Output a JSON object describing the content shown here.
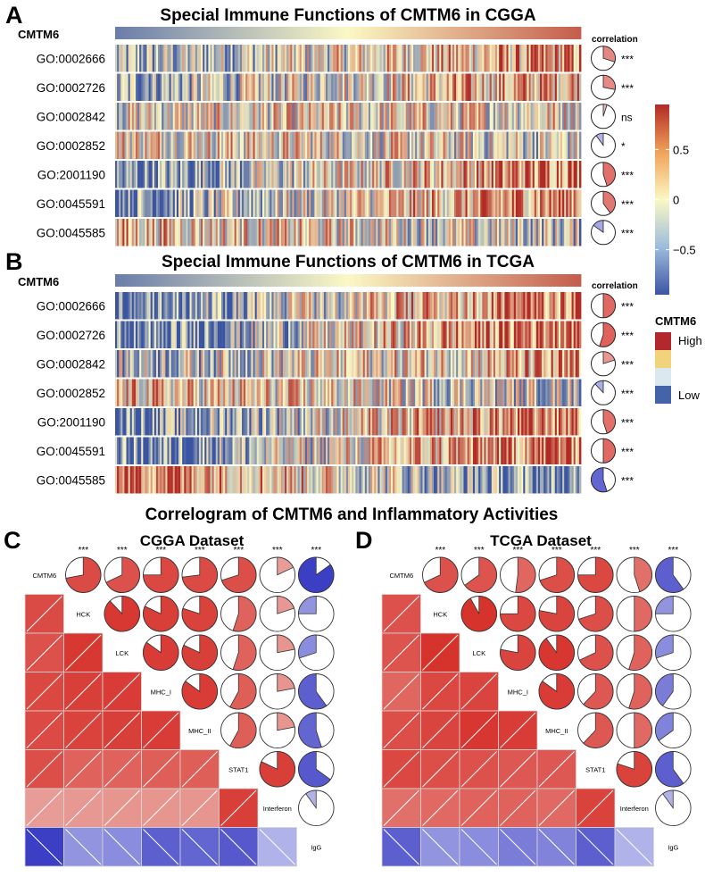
{
  "figure": {
    "panels": {
      "A": {
        "letter": "A",
        "title": "Special Immune Functions of CMTM6 in CGGA",
        "sort_label": "CMTM6",
        "corr_header": "correlation",
        "rows": [
          {
            "go": "GO:0002666",
            "corr": 0.3,
            "sig": "***"
          },
          {
            "go": "GO:0002726",
            "corr": 0.28,
            "sig": "***"
          },
          {
            "go": "GO:0002842",
            "corr": 0.05,
            "sig": "ns"
          },
          {
            "go": "GO:0002852",
            "corr": -0.1,
            "sig": "*"
          },
          {
            "go": "GO:2001190",
            "corr": 0.45,
            "sig": "***"
          },
          {
            "go": "GO:0045591",
            "corr": 0.4,
            "sig": "***"
          },
          {
            "go": "GO:0045585",
            "corr": -0.15,
            "sig": "***"
          }
        ]
      },
      "B": {
        "letter": "B",
        "title": "Special Immune Functions of CMTM6 in TCGA",
        "sort_label": "CMTM6",
        "corr_header": "correlation",
        "rows": [
          {
            "go": "GO:0002666",
            "corr": 0.5,
            "sig": "***"
          },
          {
            "go": "GO:0002726",
            "corr": 0.55,
            "sig": "***"
          },
          {
            "go": "GO:0002842",
            "corr": 0.2,
            "sig": "***"
          },
          {
            "go": "GO:0002852",
            "corr": -0.12,
            "sig": "***"
          },
          {
            "go": "GO:2001190",
            "corr": 0.45,
            "sig": "***"
          },
          {
            "go": "GO:0045591",
            "corr": 0.5,
            "sig": "***"
          },
          {
            "go": "GO:0045585",
            "corr": -0.55,
            "sig": "***"
          }
        ]
      },
      "C": {
        "letter": "C",
        "title": "CGGA Dataset",
        "variables": [
          "CMTM6",
          "HCK",
          "LCK",
          "MHC_I",
          "MHC_II",
          "STAT1",
          "Interferon",
          "IgG"
        ],
        "significance": [
          "***",
          "***",
          "***",
          "***",
          "***",
          "***",
          "***"
        ],
        "matrix": [
          [
            1,
            0.72,
            0.68,
            0.75,
            0.73,
            0.7,
            0.18,
            -0.85
          ],
          [
            0.72,
            1,
            0.88,
            0.82,
            0.8,
            0.55,
            0.2,
            -0.25
          ],
          [
            0.68,
            0.88,
            1,
            0.85,
            0.82,
            0.55,
            0.22,
            -0.3
          ],
          [
            0.75,
            0.82,
            0.85,
            1,
            0.85,
            0.58,
            0.22,
            -0.6
          ],
          [
            0.73,
            0.8,
            0.82,
            0.85,
            1,
            0.58,
            0.22,
            -0.55
          ],
          [
            0.7,
            0.55,
            0.55,
            0.58,
            0.58,
            1,
            0.82,
            -0.65
          ],
          [
            0.18,
            0.2,
            0.22,
            0.22,
            0.22,
            0.82,
            1,
            -0.1
          ],
          [
            -0.85,
            -0.25,
            -0.3,
            -0.6,
            -0.55,
            -0.65,
            -0.1,
            1
          ]
        ]
      },
      "D": {
        "letter": "D",
        "title": "TCGA Dataset",
        "variables": [
          "CMTM6",
          "HCK",
          "LCK",
          "MHC_I",
          "MHC_II",
          "STAT1",
          "Interferon",
          "IgG"
        ],
        "significance": [
          "***",
          "***",
          "***",
          "***",
          "***",
          "***",
          "***"
        ],
        "matrix": [
          [
            1,
            0.68,
            0.65,
            0.52,
            0.7,
            0.75,
            0.45,
            -0.6
          ],
          [
            0.68,
            1,
            0.92,
            0.75,
            0.78,
            0.7,
            0.5,
            -0.25
          ],
          [
            0.65,
            0.92,
            1,
            0.78,
            0.9,
            0.68,
            0.55,
            -0.3
          ],
          [
            0.52,
            0.75,
            0.78,
            1,
            0.85,
            0.62,
            0.55,
            -0.4
          ],
          [
            0.7,
            0.78,
            0.9,
            0.85,
            1,
            0.62,
            0.5,
            -0.35
          ],
          [
            0.75,
            0.7,
            0.68,
            0.62,
            0.62,
            1,
            0.8,
            -0.6
          ],
          [
            0.45,
            0.5,
            0.55,
            0.55,
            0.5,
            0.8,
            1,
            -0.1
          ],
          [
            -0.6,
            -0.25,
            -0.3,
            -0.4,
            -0.35,
            -0.6,
            -0.1,
            1
          ]
        ]
      }
    },
    "correlogram_title": "Correlogram of CMTM6 and Inflammatory Activities",
    "colorbar": {
      "ticks": [
        {
          "label": "0.5",
          "value": 0.5
        },
        {
          "label": "0",
          "value": 0.0
        },
        {
          "label": "−0.5",
          "value": -0.5
        }
      ],
      "range": [
        -0.95,
        0.95
      ]
    },
    "legend": {
      "title": "CMTM6",
      "high_label": "High",
      "low_label": "Low",
      "colors": [
        "#b2282c",
        "#f1d37c",
        "#dbe8ef",
        "#4563a8"
      ]
    },
    "colors": {
      "heat_low": "#3b55a3",
      "heat_mid": "#fbf8c4",
      "heat_high": "#b22a25",
      "pie_pos": "#d63a2e",
      "pie_neg": "#3c3fc8"
    }
  }
}
